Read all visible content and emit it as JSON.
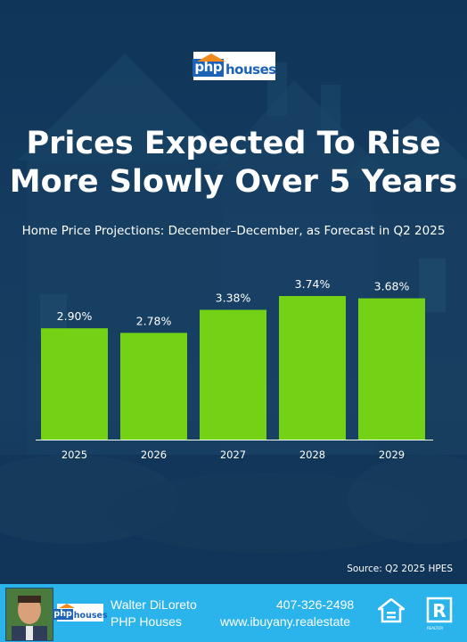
{
  "header": {
    "logo_php": "php",
    "logo_houses": "houses",
    "title_line1": "Prices Expected To Rise",
    "title_line2": "More Slowly Over 5 Years",
    "subtitle": "Home Price Projections: December–December, as Forecast in Q2 2025"
  },
  "chart_data": {
    "type": "bar",
    "categories": [
      "2025",
      "2026",
      "2027",
      "2028",
      "2029"
    ],
    "values": [
      2.9,
      2.78,
      3.38,
      3.74,
      3.68
    ],
    "data_labels": [
      "2.90%",
      "2.78%",
      "3.38%",
      "3.74%",
      "3.68%"
    ],
    "title": "Home Price Projections: December–December, as Forecast in Q2 2025",
    "xlabel": "",
    "ylabel": "",
    "ylim": [
      0,
      3.74
    ],
    "grid": false,
    "bar_color": "#73d216"
  },
  "source": "Source: Q2 2025 HPES",
  "footer": {
    "name": "Walter DiLoreto",
    "company": "PHP Houses",
    "phone": "407-326-2498",
    "website": "www.ibuyany.realestate",
    "logo_php": "php",
    "logo_houses": "houses",
    "realtor_label": "REALTOR",
    "eho_label": "EQUAL HOUSING OPPORTUNITY",
    "background_color": "#2bb4ec"
  },
  "icons": [
    "equal-housing-icon",
    "realtor-icon",
    "agent-avatar"
  ]
}
